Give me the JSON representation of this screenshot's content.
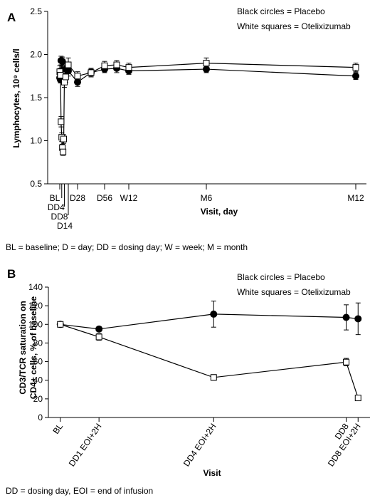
{
  "chart_data": [
    {
      "panel": "A",
      "type": "line",
      "ylabel": "Lymphocytes, 10⁹ cells/l",
      "xlabel": "Visit, day",
      "ylim": [
        0.5,
        2.5
      ],
      "yticks": [
        "0.5",
        "1.0",
        "1.5",
        "2.0",
        "2.5"
      ],
      "xlim": [
        -4,
        365
      ],
      "xticks": [
        {
          "label": "BL",
          "x": 0
        },
        {
          "label": "DD4",
          "x": 3
        },
        {
          "label": "DD8",
          "x": 7
        },
        {
          "label": "D14",
          "x": 13
        },
        {
          "label": "D28",
          "x": 28
        },
        {
          "label": "D56",
          "x": 56
        },
        {
          "label": "W12",
          "x": 84
        },
        {
          "label": "M6",
          "x": 180
        },
        {
          "label": "M12",
          "x": 360
        }
      ],
      "legend": [
        "Black circles = Placebo",
        "White squares = Otelixizumab"
      ],
      "series": [
        {
          "name": "Placebo",
          "marker": "circle",
          "points": [
            {
              "x": 0,
              "y": 1.73,
              "err": 0.04
            },
            {
              "x": 1,
              "y": 1.71,
              "err": 0.04
            },
            {
              "x": 2,
              "y": 1.93,
              "err": 0.05
            },
            {
              "x": 3,
              "y": 1.73,
              "err": 0.04
            },
            {
              "x": 4,
              "y": 1.92,
              "err": 0.05
            },
            {
              "x": 5,
              "y": 1.74,
              "err": 0.04
            },
            {
              "x": 7,
              "y": 1.74,
              "err": 0.04
            },
            {
              "x": 9,
              "y": 1.83,
              "err": 0.05
            },
            {
              "x": 13,
              "y": 1.81,
              "err": 0.06
            },
            {
              "x": 28,
              "y": 1.68,
              "err": 0.05
            },
            {
              "x": 42,
              "y": 1.79,
              "err": 0.04
            },
            {
              "x": 56,
              "y": 1.83,
              "err": 0.04
            },
            {
              "x": 70,
              "y": 1.84,
              "err": 0.05
            },
            {
              "x": 84,
              "y": 1.81,
              "err": 0.04
            },
            {
              "x": 180,
              "y": 1.83,
              "err": 0.04
            },
            {
              "x": 360,
              "y": 1.75,
              "err": 0.04
            }
          ]
        },
        {
          "name": "Otelixizumab",
          "marker": "square",
          "points": [
            {
              "x": 0,
              "y": 1.8,
              "err": 0.07
            },
            {
              "x": 1,
              "y": 1.76,
              "err": 0.08
            },
            {
              "x": 2,
              "y": 1.22,
              "err": 0.06
            },
            {
              "x": 3,
              "y": 1.04,
              "err": 0.05
            },
            {
              "x": 4,
              "y": 0.92,
              "err": 0.04
            },
            {
              "x": 5,
              "y": 0.87,
              "err": 0.04
            },
            {
              "x": 6,
              "y": 1.02,
              "err": 0.05
            },
            {
              "x": 7,
              "y": 1.68,
              "err": 0.06
            },
            {
              "x": 9,
              "y": 1.74,
              "err": 0.06
            },
            {
              "x": 13,
              "y": 1.88,
              "err": 0.08
            },
            {
              "x": 28,
              "y": 1.75,
              "err": 0.05
            },
            {
              "x": 42,
              "y": 1.79,
              "err": 0.05
            },
            {
              "x": 56,
              "y": 1.87,
              "err": 0.05
            },
            {
              "x": 70,
              "y": 1.88,
              "err": 0.05
            },
            {
              "x": 84,
              "y": 1.85,
              "err": 0.05
            },
            {
              "x": 180,
              "y": 1.9,
              "err": 0.06
            },
            {
              "x": 360,
              "y": 1.85,
              "err": 0.05
            }
          ]
        }
      ]
    },
    {
      "panel": "B",
      "type": "line",
      "ylabel": "CD3/TCR saturation on CD4+ cells, % of baseline",
      "xlabel": "Visit",
      "ylim": [
        0,
        140
      ],
      "yticks": [
        "0",
        "20",
        "40",
        "60",
        "80",
        "100",
        "120",
        "140"
      ],
      "xlim": [
        -8,
        208
      ],
      "xticks": [
        {
          "label": "BL",
          "x": 0
        },
        {
          "label": "DD1 EOI+2H",
          "x": 26
        },
        {
          "label": "DD4 EOI+2H",
          "x": 103
        },
        {
          "label": "DD8",
          "x": 192
        },
        {
          "label": "DD8 EOI+2H",
          "x": 200
        }
      ],
      "legend": [
        "Black circles = Placebo",
        "White squares = Otelixizumab"
      ],
      "series": [
        {
          "name": "Placebo",
          "marker": "circle",
          "points": [
            {
              "x": 0,
              "y": 100,
              "err": 0
            },
            {
              "x": 26,
              "y": 95,
              "err": 2.5
            },
            {
              "x": 103,
              "y": 111,
              "err": 14
            },
            {
              "x": 192,
              "y": 107.5,
              "err": 13.5
            },
            {
              "x": 200,
              "y": 106,
              "err": 17
            }
          ]
        },
        {
          "name": "Otelixizumab",
          "marker": "square",
          "points": [
            {
              "x": 0,
              "y": 100,
              "err": 0
            },
            {
              "x": 26,
              "y": 86.5,
              "err": 3.5
            },
            {
              "x": 103,
              "y": 43,
              "err": 3
            },
            {
              "x": 192,
              "y": 59.5,
              "err": 4
            },
            {
              "x": 200,
              "y": 21,
              "err": 2.5
            }
          ]
        }
      ]
    }
  ],
  "footnotes": {
    "a": "BL = baseline; D = day; DD = dosing day; W = week; M = month",
    "b": "DD = dosing day, EOI = end of infusion"
  }
}
